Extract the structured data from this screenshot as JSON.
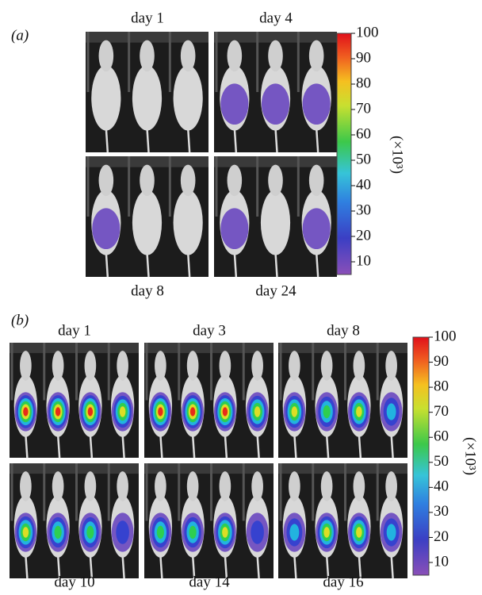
{
  "panel_a": {
    "label": "(a)",
    "images": [
      {
        "label": "day 1"
      },
      {
        "label": "day 4"
      },
      {
        "label": "day 8"
      },
      {
        "label": "day 24"
      }
    ],
    "colorbar": {
      "ticks": [
        100,
        90,
        80,
        70,
        60,
        50,
        40,
        30,
        20,
        10
      ],
      "unit": "(×10³)"
    }
  },
  "panel_b": {
    "label": "(b)",
    "images": [
      {
        "label": "day 1"
      },
      {
        "label": "day 3"
      },
      {
        "label": "day 8"
      },
      {
        "label": "day 10"
      },
      {
        "label": "day 14"
      },
      {
        "label": "day 16"
      }
    ],
    "colorbar": {
      "ticks": [
        100,
        90,
        80,
        70,
        60,
        50,
        40,
        30,
        20,
        10
      ],
      "unit": "(×10³)"
    }
  }
}
